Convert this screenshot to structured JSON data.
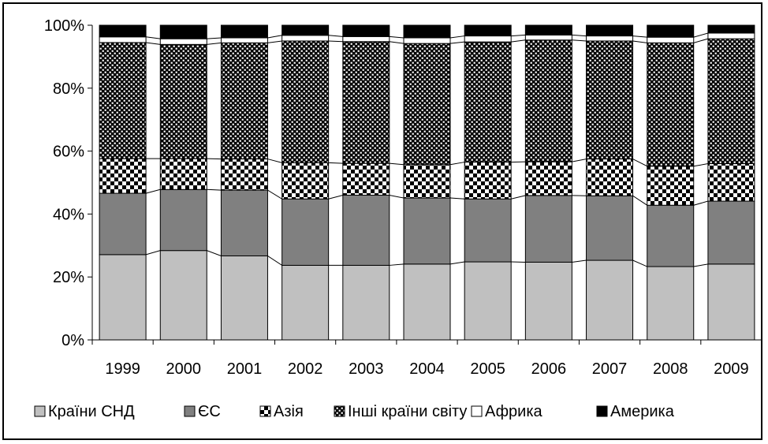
{
  "chart_data": {
    "type": "bar",
    "stacked": "percent",
    "categories": [
      "1999",
      "2000",
      "2001",
      "2002",
      "2003",
      "2004",
      "2005",
      "2006",
      "2007",
      "2008",
      "2009"
    ],
    "y_ticks": [
      "0%",
      "20%",
      "40%",
      "60%",
      "80%",
      "100%"
    ],
    "ylim": [
      0,
      100
    ],
    "grid": false,
    "legend_position": "bottom",
    "series_connector_lines": true,
    "series": [
      {
        "name": "Країни СНД",
        "pattern": "solid",
        "color": "#c0c0c0",
        "values": [
          27.1,
          28.4,
          26.7,
          23.7,
          23.7,
          24.1,
          24.8,
          24.7,
          25.3,
          23.3,
          24.1
        ]
      },
      {
        "name": "ЄС",
        "pattern": "solid",
        "color": "#808080",
        "values": [
          19.5,
          19.4,
          20.9,
          21.1,
          22.3,
          21.0,
          20.0,
          21.2,
          20.5,
          19.5,
          20.0
        ]
      },
      {
        "name": "Азія",
        "pattern": "checker",
        "color": "#000000",
        "values": [
          11.0,
          9.8,
          9.9,
          11.5,
          10.1,
          10.6,
          11.7,
          10.7,
          11.7,
          12.4,
          11.9
        ]
      },
      {
        "name": "Інші країни світу",
        "pattern": "dotted",
        "color": "#000000",
        "values": [
          36.9,
          36.3,
          36.9,
          38.7,
          38.7,
          38.5,
          38.2,
          38.7,
          37.5,
          39.2,
          39.7
        ]
      },
      {
        "name": "Африка",
        "pattern": "solid",
        "color": "#ffffff",
        "values": [
          1.8,
          1.8,
          1.6,
          1.8,
          1.6,
          1.8,
          1.9,
          1.6,
          1.6,
          1.8,
          1.8
        ]
      },
      {
        "name": "Америка",
        "pattern": "solid",
        "color": "#000000",
        "values": [
          3.7,
          4.3,
          4.0,
          3.2,
          3.6,
          4.0,
          3.4,
          3.1,
          3.4,
          3.8,
          2.5
        ]
      }
    ]
  }
}
